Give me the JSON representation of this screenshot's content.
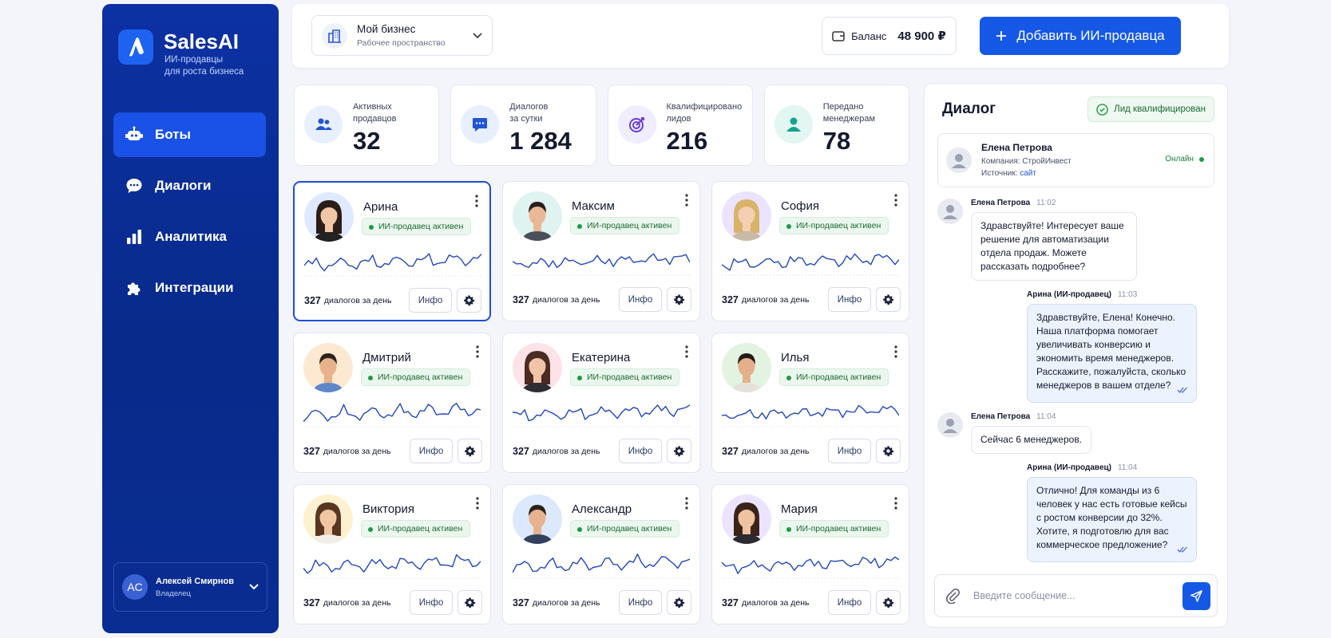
{
  "sidebar": {
    "brand": "SalesAI",
    "tagline": [
      "ИИ-продавцы",
      "для роста бизнеса"
    ],
    "nav": [
      "Боты",
      "Диалоги",
      "Аналитика",
      "Интеграции"
    ],
    "active_nav": 0,
    "user": {
      "initials": "АС",
      "name": "Алексей Смирнов",
      "role": "Владелец"
    }
  },
  "topbar": {
    "workspace_name": "Мой бизнес",
    "workspace_type": "Рабочее пространство",
    "balance_label": "Баланс",
    "balance_value": "48 900 ₽",
    "add_button": "Добавить ИИ-продавца"
  },
  "stats": [
    {
      "label": [
        "Активных",
        "продавцов"
      ],
      "value": "32"
    },
    {
      "label": [
        "Диалогов",
        "за сутки"
      ],
      "value": "1 284"
    },
    {
      "label": [
        "Квалифицировано",
        "лидов"
      ],
      "value": "216"
    },
    {
      "label": [
        "Передано",
        "менеджерам"
      ],
      "value": "78"
    }
  ],
  "bots": [
    {
      "name": "Арина",
      "status": "ИИ-продавец активен",
      "dialogs": 327,
      "dialogs_label": "диалогов за день",
      "info_button": "Инфо",
      "selected": true
    },
    {
      "name": "Максим",
      "status": "ИИ-продавец активен",
      "dialogs": 327,
      "dialogs_label": "диалогов за день",
      "info_button": "Инфо",
      "selected": false
    },
    {
      "name": "София",
      "status": "ИИ-продавец активен",
      "dialogs": 327,
      "dialogs_label": "диалогов за день",
      "info_button": "Инфо",
      "selected": false
    },
    {
      "name": "Дмитрий",
      "status": "ИИ-продавец активен",
      "dialogs": 327,
      "dialogs_label": "диалогов за день",
      "info_button": "Инфо",
      "selected": false
    },
    {
      "name": "Екатерина",
      "status": "ИИ-продавец активен",
      "dialogs": 327,
      "dialogs_label": "диалогов за день",
      "info_button": "Инфо",
      "selected": false
    },
    {
      "name": "Илья",
      "status": "ИИ-продавец активен",
      "dialogs": 327,
      "dialogs_label": "диалогов за день",
      "info_button": "Инфо",
      "selected": false
    },
    {
      "name": "Виктория",
      "status": "ИИ-продавец активен",
      "dialogs": 327,
      "dialogs_label": "диалогов за день",
      "info_button": "Инфо",
      "selected": false
    },
    {
      "name": "Александр",
      "status": "ИИ-продавец активен",
      "dialogs": 327,
      "dialogs_label": "диалогов за день",
      "info_button": "Инфо",
      "selected": false
    },
    {
      "name": "Мария",
      "status": "ИИ-продавец активен",
      "dialogs": 327,
      "dialogs_label": "диалогов за день",
      "info_button": "Инфо",
      "selected": false
    }
  ],
  "dialog": {
    "title": "Диалог",
    "badge": "Лид квалифицирован",
    "contact": {
      "name": "Елена Петрова",
      "company_label": "Компания:",
      "company": "СтройИнвест",
      "source_label": "Источник:",
      "source": "сайт",
      "status": "Онлайн"
    },
    "messages": [
      {
        "author": "Елена Петрова",
        "time": "11:02",
        "text": "Здравствуйте! Интересует ваше решение для автоматизации отдела продаж. Можете рассказать подробнее?",
        "outgoing": false
      },
      {
        "author": "Арина (ИИ-продавец)",
        "time": "11:03",
        "text": "Здравствуйте, Елена! Конечно. Наша платформа помогает увеличивать конверсию и экономить время менеджеров. Расскажите, пожалуйста, сколько менеджеров в вашем отделе?",
        "outgoing": true
      },
      {
        "author": "Елена Петрова",
        "time": "11:04",
        "text": "Сейчас 6 менеджеров.",
        "outgoing": false
      },
      {
        "author": "Арина (ИИ-продавец)",
        "time": "11:04",
        "text": "Отлично! Для команды из 6 человек у нас есть готовые кейсы с ростом конверсии до 32%. Хотите, я подготовлю для вас коммерческое предложение?",
        "outgoing": true
      }
    ],
    "input_placeholder": "Введите сообщение..."
  }
}
